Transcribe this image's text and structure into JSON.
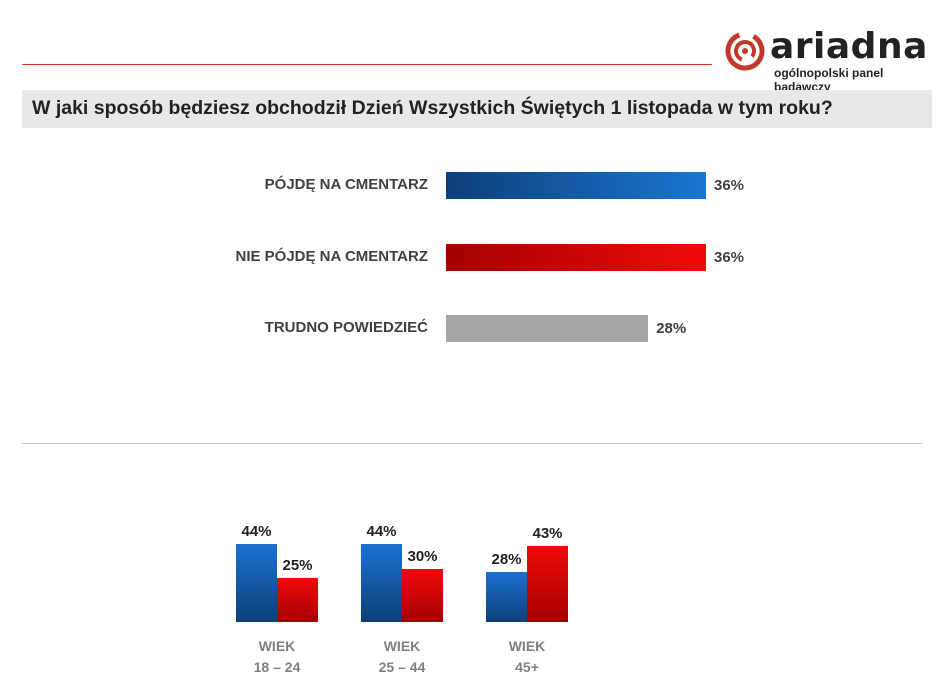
{
  "brand": {
    "name": "ariadna",
    "tagline": "ogólnopolski panel badawczy",
    "accent": "#c0392b"
  },
  "question": "W jaki sposób będziesz obchodził Dzień Wszystkich Świętych 1 listopada w tym roku?",
  "chart_data": [
    {
      "type": "bar",
      "orientation": "horizontal",
      "title": "",
      "categories": [
        "PÓJDĘ NA CMENTARZ",
        "NIE PÓJDĘ NA CMENTARZ",
        "TRUDNO POWIEDZIEĆ"
      ],
      "values": [
        36,
        36,
        28
      ],
      "value_labels": [
        "36%",
        "36%",
        "28%"
      ],
      "colors": [
        "#1a76d0",
        "#f00a0a",
        "#a6a6a6"
      ],
      "xlim": [
        0,
        36
      ],
      "grid": false
    },
    {
      "type": "bar",
      "orientation": "vertical",
      "title": "",
      "categories": [
        {
          "line1": "WIEK",
          "line2": "18 – 24"
        },
        {
          "line1": "WIEK",
          "line2": "25 – 44"
        },
        {
          "line1": "WIEK",
          "line2": "45+"
        }
      ],
      "series": [
        {
          "values": [
            44,
            44,
            28
          ],
          "value_labels": [
            "44%",
            "44%",
            "28%"
          ],
          "color": "#1a72d0"
        },
        {
          "values": [
            25,
            30,
            43
          ],
          "value_labels": [
            "25%",
            "30%",
            "43%"
          ],
          "color": "#f00a0a"
        }
      ],
      "ylim": [
        0,
        44
      ],
      "grid": false,
      "legend": "none"
    }
  ]
}
